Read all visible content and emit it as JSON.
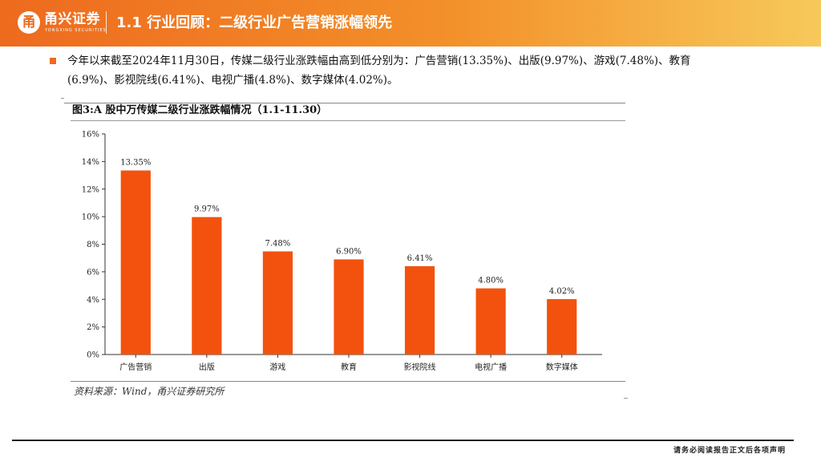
{
  "header": {
    "brand_mark": "甬",
    "brand_name": "甬兴证券",
    "brand_sub": "YONGXING SECURITIES",
    "title": "1.1 行业回顾：二级行业广告营销涨幅领先",
    "colors": {
      "primary": "#ee6a1e",
      "gradient_end": "#f7c95a"
    }
  },
  "bullet": {
    "text": "今年以来截至2024年11月30日，传媒二级行业涨跌幅由高到低分别为：广告营销(13.35%)、出版(9.97%)、游戏(7.48%)、教育(6.9%)、影视院线(6.41%)、电视广播(4.8%)、数字媒体(4.02%)。"
  },
  "figure": {
    "title": "图3:A 股中万传媒二级行业涨跌幅情况（1.1-11.30）",
    "source": "资料来源：Wind，甬兴证券研究所"
  },
  "chart_data": {
    "type": "bar",
    "title": "图3:A 股中万传媒二级行业涨跌幅情况（1.1-11.30）",
    "xlabel": "",
    "ylabel": "",
    "ylim": [
      0,
      16
    ],
    "yticks": [
      0,
      2,
      4,
      6,
      8,
      10,
      12,
      14,
      16
    ],
    "ytick_labels": [
      "0%",
      "2%",
      "4%",
      "6%",
      "8%",
      "10%",
      "12%",
      "14%",
      "16%"
    ],
    "categories": [
      "广告营销",
      "出版",
      "游戏",
      "教育",
      "影视院线",
      "电视广播",
      "数字媒体"
    ],
    "values": [
      13.35,
      9.97,
      7.48,
      6.9,
      6.41,
      4.8,
      4.02
    ],
    "data_labels": [
      "13.35%",
      "9.97%",
      "7.48%",
      "6.90%",
      "6.41%",
      "4.80%",
      "4.02%"
    ],
    "bar_color": "#f2520e",
    "grid": false,
    "legend": "none"
  },
  "footer": {
    "note": "请务必阅读报告正文后各项声明"
  }
}
